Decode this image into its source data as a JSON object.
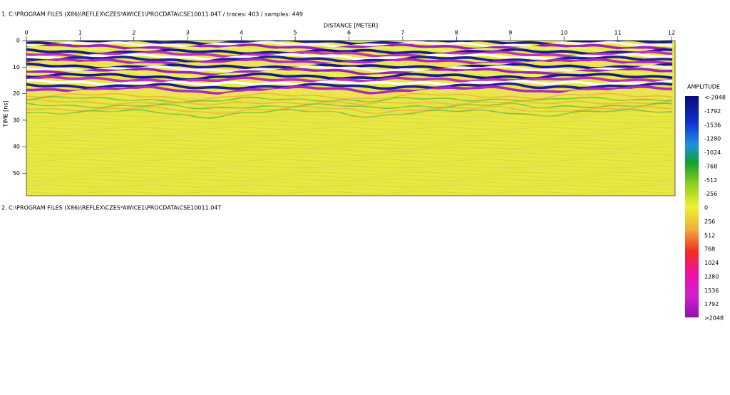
{
  "header": {
    "line1": "1. C:\\PROGRAM FILES (X86)\\REFLEX\\CZES³AWICE1\\PROCDATA\\CSE10011.04T  / traces: 403 / samples: 449",
    "line2": "2. C:\\PROGRAM FILES (X86)\\REFLEX\\CZES³AWICE1\\PROCDATA\\CSE10011.04T"
  },
  "panel": {
    "x_axis_label": "DISTANCE [METER]",
    "y_axis_label": "TIME [ns]",
    "x_ticks": [
      "0",
      "1",
      "2",
      "3",
      "4",
      "5",
      "6",
      "7",
      "8",
      "9",
      "10",
      "11",
      "12"
    ],
    "y_ticks": [
      "0",
      "10",
      "20",
      "30",
      "40",
      "50"
    ]
  },
  "colorbar": {
    "title": "AMPLITUDE",
    "labels": [
      "<-2048",
      "-1792",
      "-1536",
      "-1280",
      "-1024",
      "-768",
      "-512",
      "-256",
      "0",
      "256",
      "512",
      "768",
      "1024",
      "1280",
      "1536",
      "1792",
      ">2048"
    ]
  }
}
